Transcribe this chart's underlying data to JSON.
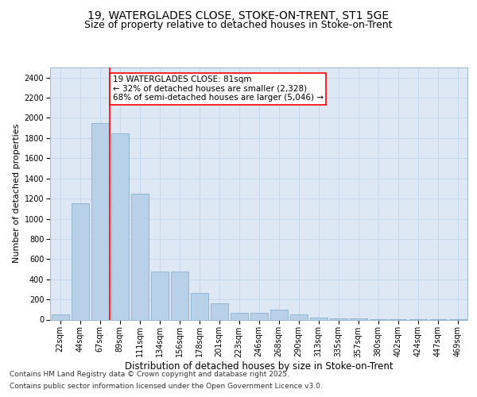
{
  "title_line1": "19, WATERGLADES CLOSE, STOKE-ON-TRENT, ST1 5GE",
  "title_line2": "Size of property relative to detached houses in Stoke-on-Trent",
  "xlabel": "Distribution of detached houses by size in Stoke-on-Trent",
  "ylabel": "Number of detached properties",
  "categories": [
    "22sqm",
    "44sqm",
    "67sqm",
    "89sqm",
    "111sqm",
    "134sqm",
    "156sqm",
    "178sqm",
    "201sqm",
    "223sqm",
    "246sqm",
    "268sqm",
    "290sqm",
    "313sqm",
    "335sqm",
    "357sqm",
    "380sqm",
    "402sqm",
    "424sqm",
    "447sqm",
    "469sqm"
  ],
  "values": [
    50,
    1150,
    1950,
    1850,
    1250,
    480,
    480,
    260,
    165,
    70,
    70,
    100,
    50,
    20,
    10,
    10,
    5,
    5,
    2,
    5,
    2
  ],
  "bar_color": "#b8d0e8",
  "bar_edge_color": "#8ab0cc",
  "vline_x_idx": 2.5,
  "vline_color": "red",
  "annotation_text": "19 WATERGLADES CLOSE: 81sqm\n← 32% of detached houses are smaller (2,328)\n68% of semi-detached houses are larger (5,046) →",
  "annotation_box_color": "white",
  "annotation_box_edge_color": "red",
  "ylim": [
    0,
    2500
  ],
  "yticks": [
    0,
    200,
    400,
    600,
    800,
    1000,
    1200,
    1400,
    1600,
    1800,
    2000,
    2200,
    2400
  ],
  "grid_color": "#c8d8ec",
  "background_color": "#dde8f4",
  "footer_line1": "Contains HM Land Registry data © Crown copyright and database right 2025.",
  "footer_line2": "Contains public sector information licensed under the Open Government Licence v3.0.",
  "title_fontsize": 10,
  "subtitle_fontsize": 9,
  "axis_label_fontsize": 8,
  "tick_fontsize": 7,
  "annotation_fontsize": 7.5,
  "footer_fontsize": 6.5
}
